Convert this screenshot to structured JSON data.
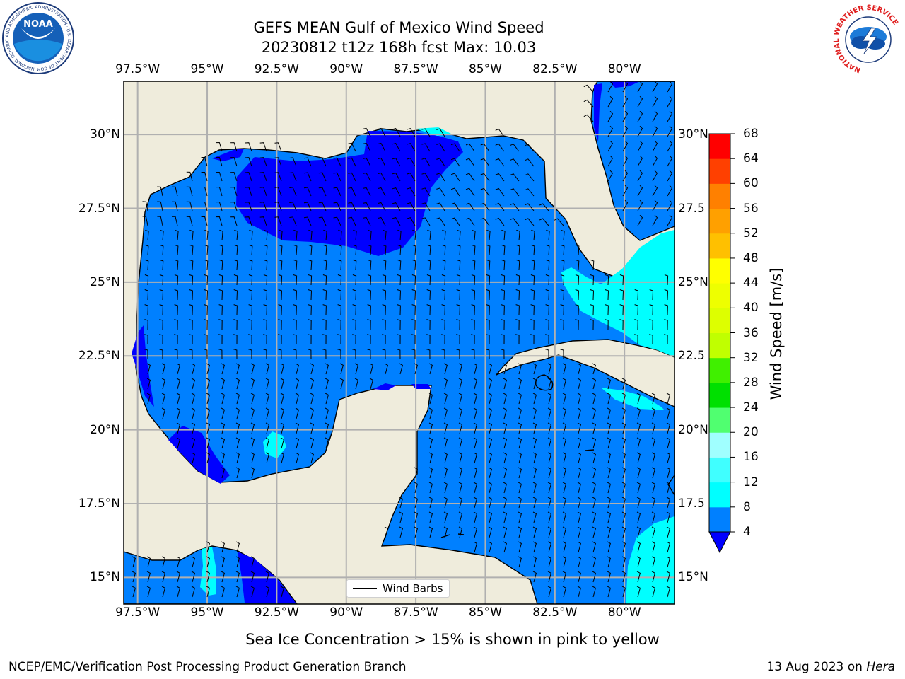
{
  "title": {
    "line1": "GEFS MEAN Gulf of Mexico Wind Speed",
    "line2": "20230812 t12z 168h fcst   Max: 10.03"
  },
  "map": {
    "lon_ticks": [
      "97.5°W",
      "95°W",
      "92.5°W",
      "90°W",
      "87.5°W",
      "85°W",
      "82.5°W",
      "80°W"
    ],
    "lat_ticks": [
      "30°N",
      "27.5°N",
      "25°N",
      "22.5°N",
      "20°N",
      "17.5°N",
      "15°N"
    ],
    "lat_ticks_right": [
      "30°N",
      "27.5",
      "25°N",
      "22.5",
      "20°N",
      "17.5",
      "15°N"
    ],
    "extent": {
      "lon": [
        -98,
        -78.2
      ],
      "lat": [
        14.1,
        31.8
      ]
    },
    "land_color": "#efecdc",
    "ocean_color": "#0080ff",
    "grid_color": "#b0b0b0"
  },
  "legend": {
    "label": "Wind Barbs"
  },
  "colorbar": {
    "label": "Wind Speed [m/s]",
    "ticks": [
      "68",
      "64",
      "60",
      "56",
      "52",
      "48",
      "44",
      "40",
      "36",
      "32",
      "28",
      "24",
      "20",
      "16",
      "12",
      "8",
      "4"
    ],
    "bins": [
      {
        "from": 4,
        "to": 8,
        "color": "#0080ff"
      },
      {
        "from": 8,
        "to": 12,
        "color": "#00ffff"
      },
      {
        "from": 12,
        "to": 16,
        "color": "#40ffff"
      },
      {
        "from": 16,
        "to": 20,
        "color": "#a0ffff"
      },
      {
        "from": 20,
        "to": 24,
        "color": "#50ff70"
      },
      {
        "from": 24,
        "to": 28,
        "color": "#00e000"
      },
      {
        "from": 28,
        "to": 32,
        "color": "#40f000"
      },
      {
        "from": 32,
        "to": 36,
        "color": "#c0ff00"
      },
      {
        "from": 36,
        "to": 40,
        "color": "#ddff00"
      },
      {
        "from": 40,
        "to": 44,
        "color": "#eeff00"
      },
      {
        "from": 44,
        "to": 48,
        "color": "#ffff00"
      },
      {
        "from": 48,
        "to": 52,
        "color": "#ffc000"
      },
      {
        "from": 52,
        "to": 56,
        "color": "#ffa000"
      },
      {
        "from": 56,
        "to": 60,
        "color": "#ff8000"
      },
      {
        "from": 60,
        "to": 64,
        "color": "#ff4000"
      },
      {
        "from": 64,
        "to": 68,
        "color": "#ff0000"
      }
    ],
    "under_color": "#0000ff"
  },
  "note": "Sea Ice Concentration > 15% is shown in pink to yellow",
  "footer": {
    "left": "NCEP/EMC/Verification Post Processing Product Generation Branch",
    "date": "13 Aug 2023 on ",
    "machine": "Hera"
  },
  "logos": {
    "noaa": {
      "label": "NOAA",
      "ring_text": "NATIONAL OCEANIC AND ATMOSPHERIC ADMINISTRATION · U.S. DEPARTMENT OF COMMERCE"
    },
    "nws": {
      "ring_text": "NATIONAL WEATHER SERVICE"
    }
  }
}
